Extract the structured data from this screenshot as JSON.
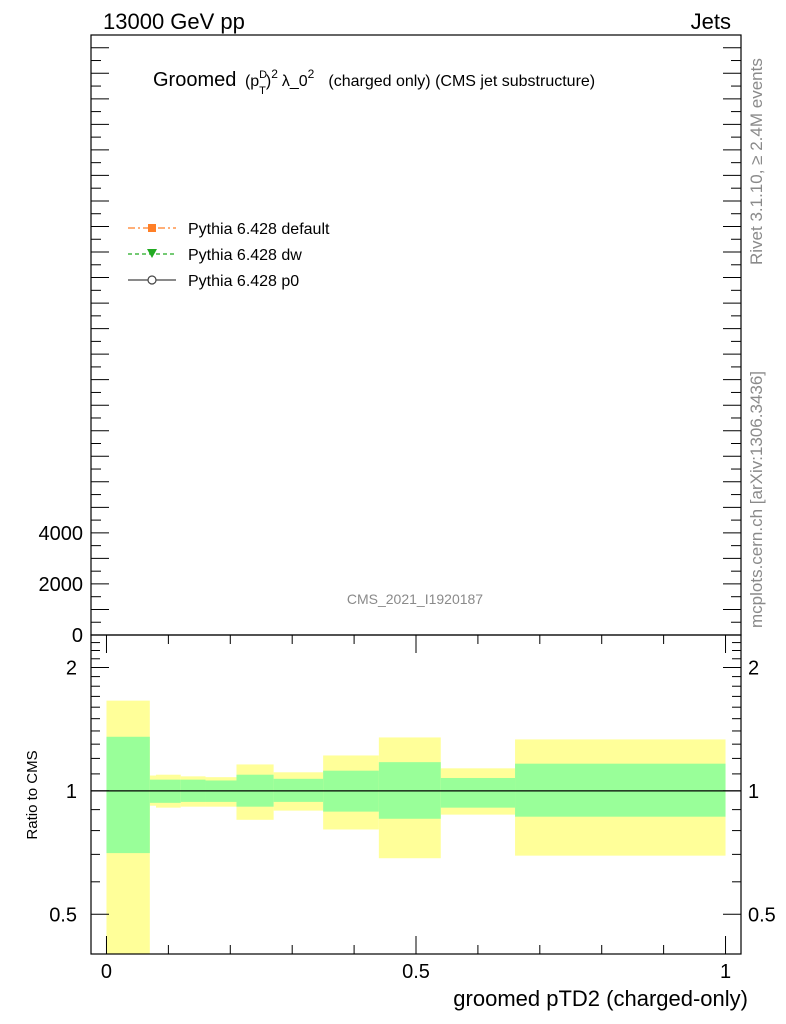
{
  "header": {
    "left": "13000 GeV pp",
    "right": "Jets"
  },
  "side": {
    "rivet": "Rivet 3.1.10, ≥ 2.4M events",
    "mcplots": "mcplots.cern.ch [arXiv:1306.3436]"
  },
  "analysis_id": "CMS_2021_I1920187",
  "title": {
    "prefix": "Groomed",
    "p": "p",
    "sup_d": "D",
    "sub_t": "T",
    "sq": "2",
    "lambda": "λ_0",
    "sq2": "2",
    "rest": "(charged only) (CMS jet substructure)"
  },
  "colors": {
    "yellow_band": "#ffff99",
    "green_band": "#99ff99",
    "default": "#ff7f27",
    "dw": "#22aa22",
    "p0": "#444444"
  },
  "chart_data": [
    {
      "type": "line",
      "panel": "main",
      "legend_placement": "upper-left",
      "series": [
        {
          "name": "Pythia 6.428 default",
          "marker": "square",
          "line": "dash-dot",
          "color": "#ff7f27"
        },
        {
          "name": "Pythia 6.428 dw",
          "marker": "triangle-down",
          "line": "dashed",
          "color": "#22aa22"
        },
        {
          "name": "Pythia 6.428 p0",
          "marker": "open-circle",
          "line": "solid",
          "color": "#444444"
        }
      ],
      "y_ticks": [
        {
          "value": 0,
          "label": "0"
        },
        {
          "value": 2000,
          "label": "2000"
        },
        {
          "value": 4000,
          "label": "4000"
        }
      ],
      "ylim": [
        0,
        23500
      ]
    },
    {
      "type": "area",
      "panel": "ratio",
      "xlabel": "groomed pTD2 (charged-only)",
      "ylabel": "Ratio to CMS",
      "xlim": [
        -0.025,
        1.025
      ],
      "ylim": [
        0.4,
        2.4
      ],
      "log_y": true,
      "x_ticks": [
        {
          "value": 0,
          "label": "0"
        },
        {
          "value": 0.5,
          "label": "0.5"
        },
        {
          "value": 1,
          "label": "1"
        }
      ],
      "y_ticks": [
        {
          "value": 0.5,
          "label": "0.5"
        },
        {
          "value": 1,
          "label": "1"
        },
        {
          "value": 2,
          "label": "2"
        }
      ],
      "reference_line": 1,
      "bins": [
        {
          "x0": 0.0,
          "x1": 0.07,
          "green": [
            0.705,
            1.355
          ],
          "yellow": [
            0.4,
            1.66
          ]
        },
        {
          "x0": 0.07,
          "x1": 0.08,
          "green": [
            0.935,
            1.065
          ],
          "yellow": [
            0.92,
            1.09
          ]
        },
        {
          "x0": 0.08,
          "x1": 0.12,
          "green": [
            0.935,
            1.065
          ],
          "yellow": [
            0.91,
            1.095
          ]
        },
        {
          "x0": 0.12,
          "x1": 0.16,
          "green": [
            0.94,
            1.065
          ],
          "yellow": [
            0.915,
            1.085
          ]
        },
        {
          "x0": 0.16,
          "x1": 0.21,
          "green": [
            0.94,
            1.06
          ],
          "yellow": [
            0.915,
            1.08
          ]
        },
        {
          "x0": 0.21,
          "x1": 0.27,
          "green": [
            0.915,
            1.095
          ],
          "yellow": [
            0.85,
            1.16
          ]
        },
        {
          "x0": 0.27,
          "x1": 0.35,
          "green": [
            0.94,
            1.07
          ],
          "yellow": [
            0.895,
            1.11
          ]
        },
        {
          "x0": 0.35,
          "x1": 0.44,
          "green": [
            0.89,
            1.12
          ],
          "yellow": [
            0.805,
            1.22
          ]
        },
        {
          "x0": 0.44,
          "x1": 0.54,
          "green": [
            0.855,
            1.175
          ],
          "yellow": [
            0.685,
            1.35
          ]
        },
        {
          "x0": 0.54,
          "x1": 0.66,
          "green": [
            0.91,
            1.075
          ],
          "yellow": [
            0.875,
            1.135
          ]
        },
        {
          "x0": 0.66,
          "x1": 1.0,
          "green": [
            0.865,
            1.165
          ],
          "yellow": [
            0.695,
            1.335
          ]
        }
      ]
    }
  ]
}
